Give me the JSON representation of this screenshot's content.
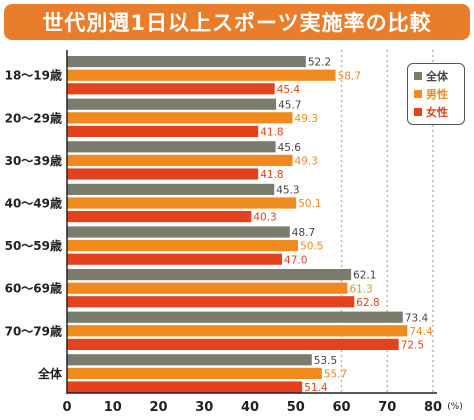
{
  "title": "世代別週1日以上スポーツ実施率の比較",
  "colors": {
    "all": "#7b7b6e",
    "male": "#f08a1f",
    "female": "#e3421e",
    "title_bg": "#ea7d2b"
  },
  "chart_data": {
    "type": "bar",
    "orientation": "horizontal",
    "categories": [
      "18～19歳",
      "20～29歳",
      "30～39歳",
      "40～49歳",
      "50～59歳",
      "60～69歳",
      "70～79歳",
      "全体"
    ],
    "series": [
      {
        "name": "全体",
        "color": "#7b7b6e",
        "values": [
          52.2,
          45.7,
          45.6,
          45.3,
          48.7,
          62.1,
          73.4,
          53.5
        ]
      },
      {
        "name": "男性",
        "color": "#f08a1f",
        "values": [
          58.7,
          49.3,
          49.3,
          50.1,
          50.5,
          61.3,
          74.4,
          55.7
        ]
      },
      {
        "name": "女性",
        "color": "#e3421e",
        "values": [
          45.4,
          41.8,
          41.8,
          40.3,
          47.0,
          62.8,
          72.5,
          51.4
        ]
      }
    ],
    "value_labels": [
      [
        "52.2",
        "45.7",
        "45.6",
        "45.3",
        "48.7",
        "62.1",
        "73.4",
        "53.5"
      ],
      [
        "58.7",
        "49.3",
        "49.3",
        "50.1",
        "50.5",
        "61.3",
        "74.4",
        "55.7"
      ],
      [
        "45.4",
        "41.8",
        "41.8",
        "40.3",
        "47.0",
        "62.8",
        "72.5",
        "51.4"
      ]
    ],
    "xlim": [
      0,
      80
    ],
    "xticks": [
      "0",
      "10",
      "20",
      "30",
      "40",
      "50",
      "60",
      "70",
      "80"
    ],
    "unit_label": "(%)",
    "gridlines": "dotted at 60, 70, 80",
    "legend_position": "top-right",
    "xlabel": "",
    "ylabel": ""
  }
}
